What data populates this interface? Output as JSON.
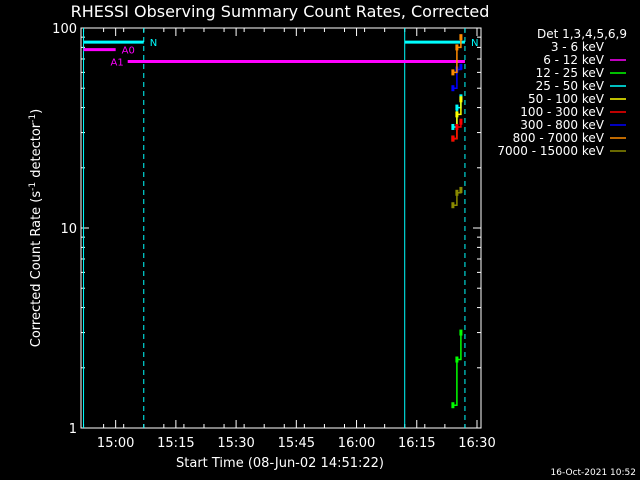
{
  "chart_data": {
    "type": "line",
    "title": "RHESSI Observing Summary Count Rates, Corrected",
    "xlabel": "Start Time (08-Jun-02 14:51:22)",
    "ylabel_main": "Corrected Count Rate (s",
    "ylabel_exp1": "-1",
    "ylabel_mid": " detector",
    "ylabel_exp2": "-1",
    "ylabel_end": ")",
    "yscale": "log",
    "ylim": [
      1,
      100
    ],
    "xlim_minutes": [
      14.85,
      16.52
    ],
    "x_ticks": [
      "15:00",
      "15:15",
      "15:30",
      "15:45",
      "16:00",
      "16:15",
      "16:30"
    ],
    "y_ticks": [
      "1",
      "10",
      "100"
    ],
    "timestamp": "16-Oct-2021 10:52",
    "legend": {
      "header": "Det 1,3,4,5,6,9",
      "placement": "top-right",
      "entries": [
        {
          "label": "3 - 6 keV",
          "color": "#000000"
        },
        {
          "label": "6 - 12 keV",
          "color": "#ff00ff"
        },
        {
          "label": "12 - 25 keV",
          "color": "#00ff00"
        },
        {
          "label": "25 - 50 keV",
          "color": "#00ffff"
        },
        {
          "label": "50 - 100 keV",
          "color": "#ffff00"
        },
        {
          "label": "100 - 300 keV",
          "color": "#ff0000"
        },
        {
          "label": "300 - 800 keV",
          "color": "#0000ff"
        },
        {
          "label": "800 - 7000 keV",
          "color": "#ff8c00"
        },
        {
          "label": "7000 - 15000 keV",
          "color": "#8b8b00"
        }
      ]
    },
    "flags": [
      {
        "label": "N",
        "color": "#00ffff",
        "x_start": "14:52",
        "x_end": "15:07",
        "level": 85
      },
      {
        "label": "N",
        "color": "#00ffff",
        "x_start": "16:12",
        "x_end": "16:27",
        "level": 85
      },
      {
        "label": "A0",
        "color": "#ff00ff",
        "x_start": "14:52",
        "x_end": "15:00",
        "level": 78
      },
      {
        "label": "A1",
        "color": "#ff00ff",
        "x_start": "15:03",
        "x_end": "16:27",
        "level": 68
      }
    ],
    "night_boundaries": [
      "14:52",
      "16:12"
    ],
    "day_boundaries": [
      "15:07",
      "16:27"
    ],
    "series": [
      {
        "name": "12 - 25 keV",
        "color": "#00ff00",
        "points": [
          [
            "16:24",
            1.3
          ],
          [
            "16:25",
            2.2
          ],
          [
            "16:26",
            3.0
          ]
        ]
      },
      {
        "name": "25 - 50 keV",
        "color": "#00ffff",
        "points": [
          [
            "16:24",
            32
          ],
          [
            "16:25",
            40
          ],
          [
            "16:26",
            45
          ]
        ]
      },
      {
        "name": "50 - 100 keV",
        "color": "#ffff00",
        "points": [
          [
            "16:24",
            28
          ],
          [
            "16:25",
            37
          ],
          [
            "16:26",
            44
          ]
        ]
      },
      {
        "name": "100 - 300 keV",
        "color": "#ff0000",
        "points": [
          [
            "16:24",
            28
          ],
          [
            "16:25",
            32
          ],
          [
            "16:26",
            34
          ]
        ]
      },
      {
        "name": "300 - 800 keV",
        "color": "#0000ff",
        "points": [
          [
            "16:24",
            50
          ],
          [
            "16:25",
            62
          ],
          [
            "16:26",
            64
          ]
        ]
      },
      {
        "name": "800 - 7000 keV",
        "color": "#ff8c00",
        "points": [
          [
            "16:24",
            60
          ],
          [
            "16:25",
            80
          ],
          [
            "16:26",
            90
          ]
        ]
      },
      {
        "name": "7000 - 15000 keV",
        "color": "#8b8b00",
        "points": [
          [
            "16:24",
            13
          ],
          [
            "16:25",
            15
          ],
          [
            "16:26",
            15.5
          ]
        ]
      }
    ]
  }
}
